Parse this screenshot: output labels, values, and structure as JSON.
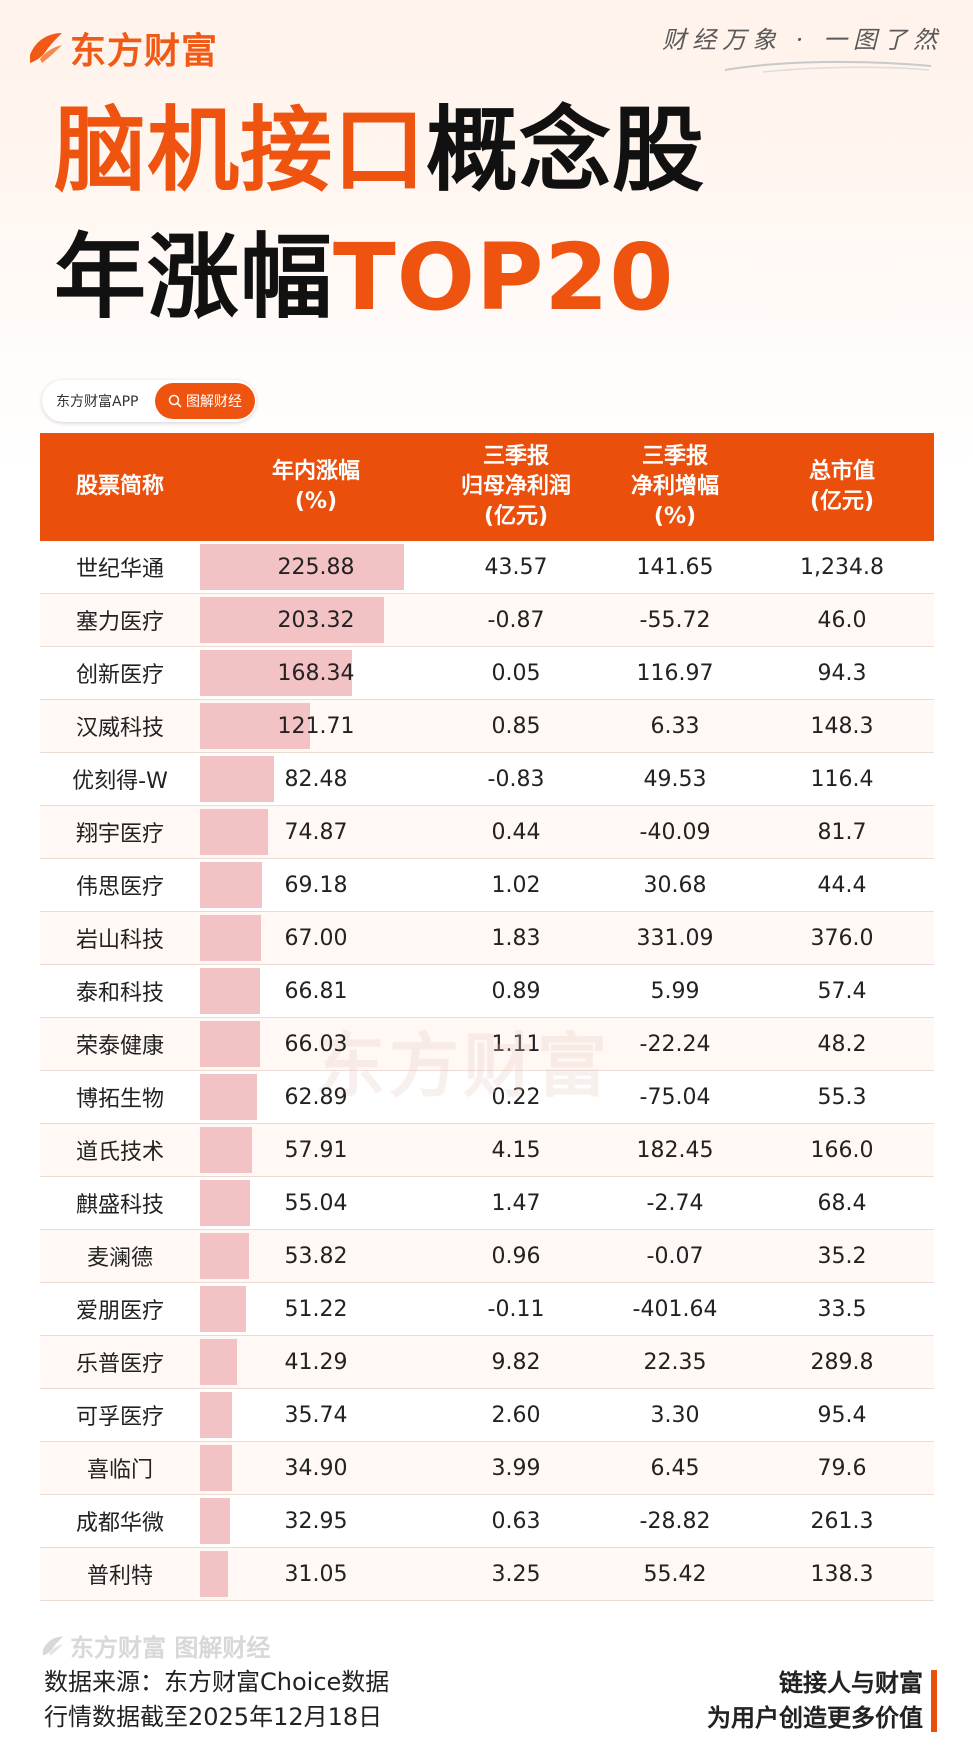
{
  "brand": {
    "logo_text": "东方财富",
    "slogan": "财经万象 · 一图了然"
  },
  "title": {
    "line1_orange": "脑机接口",
    "line1_black": "概念股",
    "line2_black": "年涨幅",
    "line2_orange": "TOP20"
  },
  "search": {
    "app_label": "东方财富APP",
    "button_label": "图解财经"
  },
  "table": {
    "headers": [
      [
        "股票简称"
      ],
      [
        "年内涨幅",
        "(%)"
      ],
      [
        "三季报",
        "归母净利润",
        "(亿元)"
      ],
      [
        "三季报",
        "净利增幅",
        "(%)"
      ],
      [
        "总市值",
        "(亿元)"
      ]
    ],
    "max_gain": 225.88,
    "rows": [
      {
        "name": "世纪华通",
        "gain": "225.88",
        "profit": "43.57",
        "growth": "141.65",
        "cap": "1,234.8"
      },
      {
        "name": "塞力医疗",
        "gain": "203.32",
        "profit": "-0.87",
        "growth": "-55.72",
        "cap": "46.0"
      },
      {
        "name": "创新医疗",
        "gain": "168.34",
        "profit": "0.05",
        "growth": "116.97",
        "cap": "94.3"
      },
      {
        "name": "汉威科技",
        "gain": "121.71",
        "profit": "0.85",
        "growth": "6.33",
        "cap": "148.3"
      },
      {
        "name": "优刻得-W",
        "gain": "82.48",
        "profit": "-0.83",
        "growth": "49.53",
        "cap": "116.4"
      },
      {
        "name": "翔宇医疗",
        "gain": "74.87",
        "profit": "0.44",
        "growth": "-40.09",
        "cap": "81.7"
      },
      {
        "name": "伟思医疗",
        "gain": "69.18",
        "profit": "1.02",
        "growth": "30.68",
        "cap": "44.4"
      },
      {
        "name": "岩山科技",
        "gain": "67.00",
        "profit": "1.83",
        "growth": "331.09",
        "cap": "376.0"
      },
      {
        "name": "泰和科技",
        "gain": "66.81",
        "profit": "0.89",
        "growth": "5.99",
        "cap": "57.4"
      },
      {
        "name": "荣泰健康",
        "gain": "66.03",
        "profit": "1.11",
        "growth": "-22.24",
        "cap": "48.2"
      },
      {
        "name": "博拓生物",
        "gain": "62.89",
        "profit": "0.22",
        "growth": "-75.04",
        "cap": "55.3"
      },
      {
        "name": "道氏技术",
        "gain": "57.91",
        "profit": "4.15",
        "growth": "182.45",
        "cap": "166.0"
      },
      {
        "name": "麒盛科技",
        "gain": "55.04",
        "profit": "1.47",
        "growth": "-2.74",
        "cap": "68.4"
      },
      {
        "name": "麦澜德",
        "gain": "53.82",
        "profit": "0.96",
        "growth": "-0.07",
        "cap": "35.2"
      },
      {
        "name": "爱朋医疗",
        "gain": "51.22",
        "profit": "-0.11",
        "growth": "-401.64",
        "cap": "33.5"
      },
      {
        "name": "乐普医疗",
        "gain": "41.29",
        "profit": "9.82",
        "growth": "22.35",
        "cap": "289.8"
      },
      {
        "name": "可孚医疗",
        "gain": "35.74",
        "profit": "2.60",
        "growth": "3.30",
        "cap": "95.4"
      },
      {
        "name": "喜临门",
        "gain": "34.90",
        "profit": "3.99",
        "growth": "6.45",
        "cap": "79.6"
      },
      {
        "name": "成都华微",
        "gain": "32.95",
        "profit": "0.63",
        "growth": "-28.82",
        "cap": "261.3"
      },
      {
        "name": "普利特",
        "gain": "31.05",
        "profit": "3.25",
        "growth": "55.42",
        "cap": "138.3"
      }
    ]
  },
  "watermark": "东方财富",
  "footer": {
    "logo_text": "东方财富 图解财经",
    "source_line1": "数据来源：东方财富Choice数据",
    "source_line2": "行情数据截至2025年12月18日",
    "tagline_line1": "链接人与财富",
    "tagline_line2": "为用户创造更多价值"
  },
  "colors": {
    "accent": "#ea4f0c",
    "bar": "#f3c2c5",
    "row_alt": "#fff8f4"
  }
}
